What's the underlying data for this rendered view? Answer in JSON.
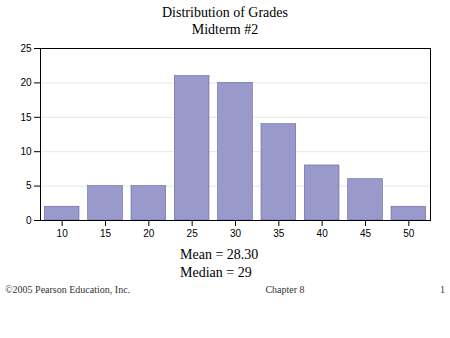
{
  "chart_data": {
    "type": "bar",
    "title": "Distribution of Grades",
    "subtitle": "Midterm #2",
    "x": [
      10,
      15,
      20,
      25,
      30,
      35,
      40,
      45,
      50
    ],
    "values": [
      2,
      5,
      5,
      21,
      20,
      14,
      8,
      6,
      2
    ],
    "color": "#9999cc",
    "xlim": [
      7.5,
      52.5
    ],
    "xticks": [
      10,
      15,
      20,
      25,
      30,
      35,
      40,
      45,
      50
    ],
    "ylim": [
      0,
      25
    ],
    "yticks": [
      0,
      5,
      10,
      15,
      20,
      25
    ],
    "grid": true,
    "annotations": [
      "Mean = 28.30",
      "Median = 29",
      "©2005 Pearson Education, Inc.",
      "Chapter 8",
      "1"
    ]
  }
}
